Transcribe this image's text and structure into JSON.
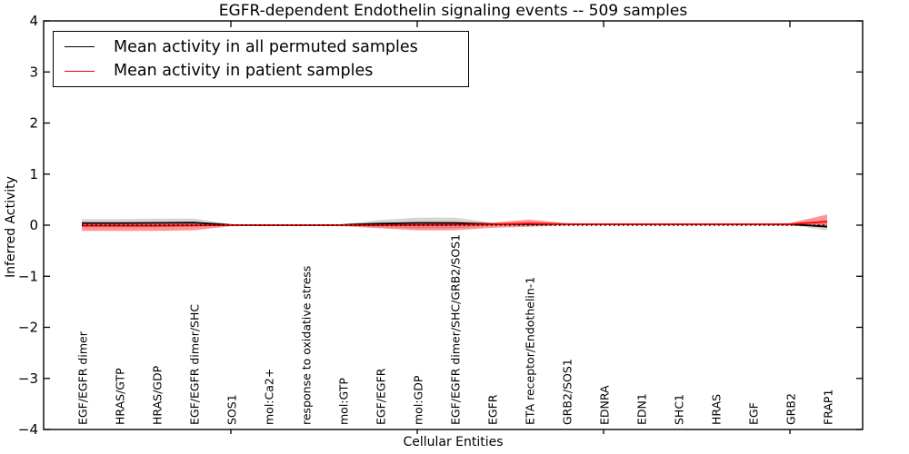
{
  "figure": {
    "title": "EGFR-dependent Endothelin signaling events -- 509 samples"
  },
  "legend": {
    "items": [
      {
        "label": "Mean activity in all permuted samples",
        "color": "#000000"
      },
      {
        "label": "Mean activity in patient samples",
        "color": "#ff0000"
      }
    ]
  },
  "chart_data": {
    "type": "line",
    "title": "EGFR-dependent Endothelin signaling events -- 509 samples",
    "xlabel": "Cellular Entities",
    "ylabel": "Inferred Activity",
    "ylim": [
      -4,
      4
    ],
    "yticks": [
      4,
      3,
      2,
      1,
      0,
      -1,
      -2,
      -3,
      -4
    ],
    "x_major_tick_indices": [
      4,
      9,
      14,
      19
    ],
    "grid": false,
    "legend_position": "upper left",
    "zero_reference_line": {
      "y": 0,
      "style": "dotted",
      "color": "#000000"
    },
    "categories": [
      "EGF/EGFR dimer",
      "HRAS/GTP",
      "HRAS/GDP",
      "EGF/EGFR dimer/SHC",
      "SOS1",
      "mol:Ca2+",
      "response to oxidative stress",
      "mol:GTP",
      "EGF/EGFR",
      "mol:GDP",
      "EGF/EGFR dimer/SHC/GRB2/SOS1",
      "EGFR",
      "ETA receptor/Endothelin-1",
      "GRB2/SOS1",
      "EDNRA",
      "EDN1",
      "SHC1",
      "HRAS",
      "EGF",
      "GRB2",
      "FRAP1"
    ],
    "series": [
      {
        "name": "Mean activity in all permuted samples",
        "color": "#000000",
        "band_color": "rgba(0,0,0,0.16)",
        "mean": [
          0.04,
          0.04,
          0.045,
          0.05,
          0.005,
          0,
          0,
          0.005,
          0.03,
          0.045,
          0.045,
          0.02,
          0.02,
          0.02,
          0.02,
          0.02,
          0.02,
          0.02,
          0.02,
          0.02,
          -0.03
        ],
        "band_upper": [
          0.12,
          0.12,
          0.13,
          0.13,
          0.02,
          0.01,
          0.01,
          0.02,
          0.1,
          0.15,
          0.15,
          0.05,
          0.035,
          0.03,
          0.03,
          0.03,
          0.03,
          0.03,
          0.03,
          0.03,
          0.04
        ],
        "band_lower": [
          -0.04,
          -0.04,
          -0.04,
          -0.03,
          -0.01,
          -0.005,
          -0.005,
          -0.01,
          -0.04,
          -0.06,
          -0.06,
          -0.01,
          0.005,
          0.01,
          0.01,
          0.01,
          0.01,
          0.01,
          0.01,
          0.005,
          -0.1
        ]
      },
      {
        "name": "Mean activity in patient samples",
        "color": "#ff0000",
        "band_color": "rgba(255,0,0,0.42)",
        "mean": [
          -0.01,
          -0.01,
          -0.01,
          -0.005,
          0,
          0,
          0,
          0,
          0,
          0.005,
          0.01,
          0.015,
          0.035,
          0.02,
          0.02,
          0.02,
          0.02,
          0.02,
          0.02,
          0.02,
          0.07
        ],
        "band_upper": [
          0.06,
          0.06,
          0.06,
          0.06,
          0.015,
          0.01,
          0.01,
          0.015,
          0.04,
          0.06,
          0.06,
          0.05,
          0.11,
          0.04,
          0.03,
          0.03,
          0.03,
          0.03,
          0.03,
          0.04,
          0.21
        ],
        "band_lower": [
          -0.11,
          -0.11,
          -0.11,
          -0.1,
          -0.02,
          -0.01,
          -0.01,
          -0.02,
          -0.06,
          -0.1,
          -0.1,
          -0.05,
          -0.03,
          -0.005,
          -0.005,
          -0.005,
          -0.005,
          -0.005,
          -0.005,
          -0.01,
          -0.03
        ]
      }
    ]
  }
}
